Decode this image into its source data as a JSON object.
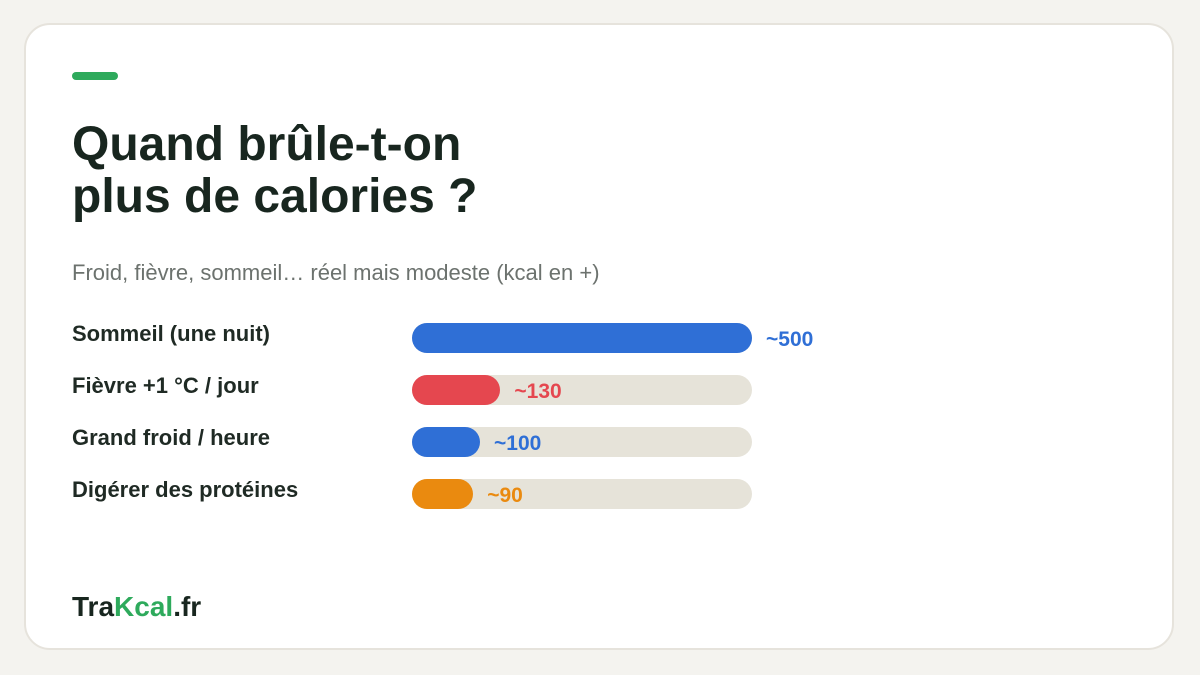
{
  "header": {
    "title_line1": "Quand brûle-t-on",
    "title_line2": "plus de calories ?",
    "subtitle": "Froid, fièvre, sommeil… réel mais modeste (kcal en +)"
  },
  "brand": {
    "prefix": "Tra",
    "highlight": "Kcal",
    "suffix": ".fr"
  },
  "colors": {
    "accent": "#2eaa5c",
    "track": "#e6e3d9"
  },
  "chart_data": {
    "type": "bar",
    "orientation": "horizontal",
    "title": "Quand brûle-t-on plus de calories ?",
    "subtitle": "Froid, fièvre, sommeil… réel mais modeste (kcal en +)",
    "xlim": [
      0,
      500
    ],
    "grid": false,
    "categories": [
      "Sommeil (une nuit)",
      "Fièvre +1 °C / jour",
      "Grand froid / heure",
      "Digérer des protéines"
    ],
    "values": [
      500,
      130,
      100,
      90
    ],
    "value_labels": [
      "~500",
      "~130",
      "~100",
      "~90"
    ],
    "bar_colors": [
      "#2f6fd6",
      "#e5474f",
      "#2f6fd6",
      "#ea8a0f"
    ]
  }
}
